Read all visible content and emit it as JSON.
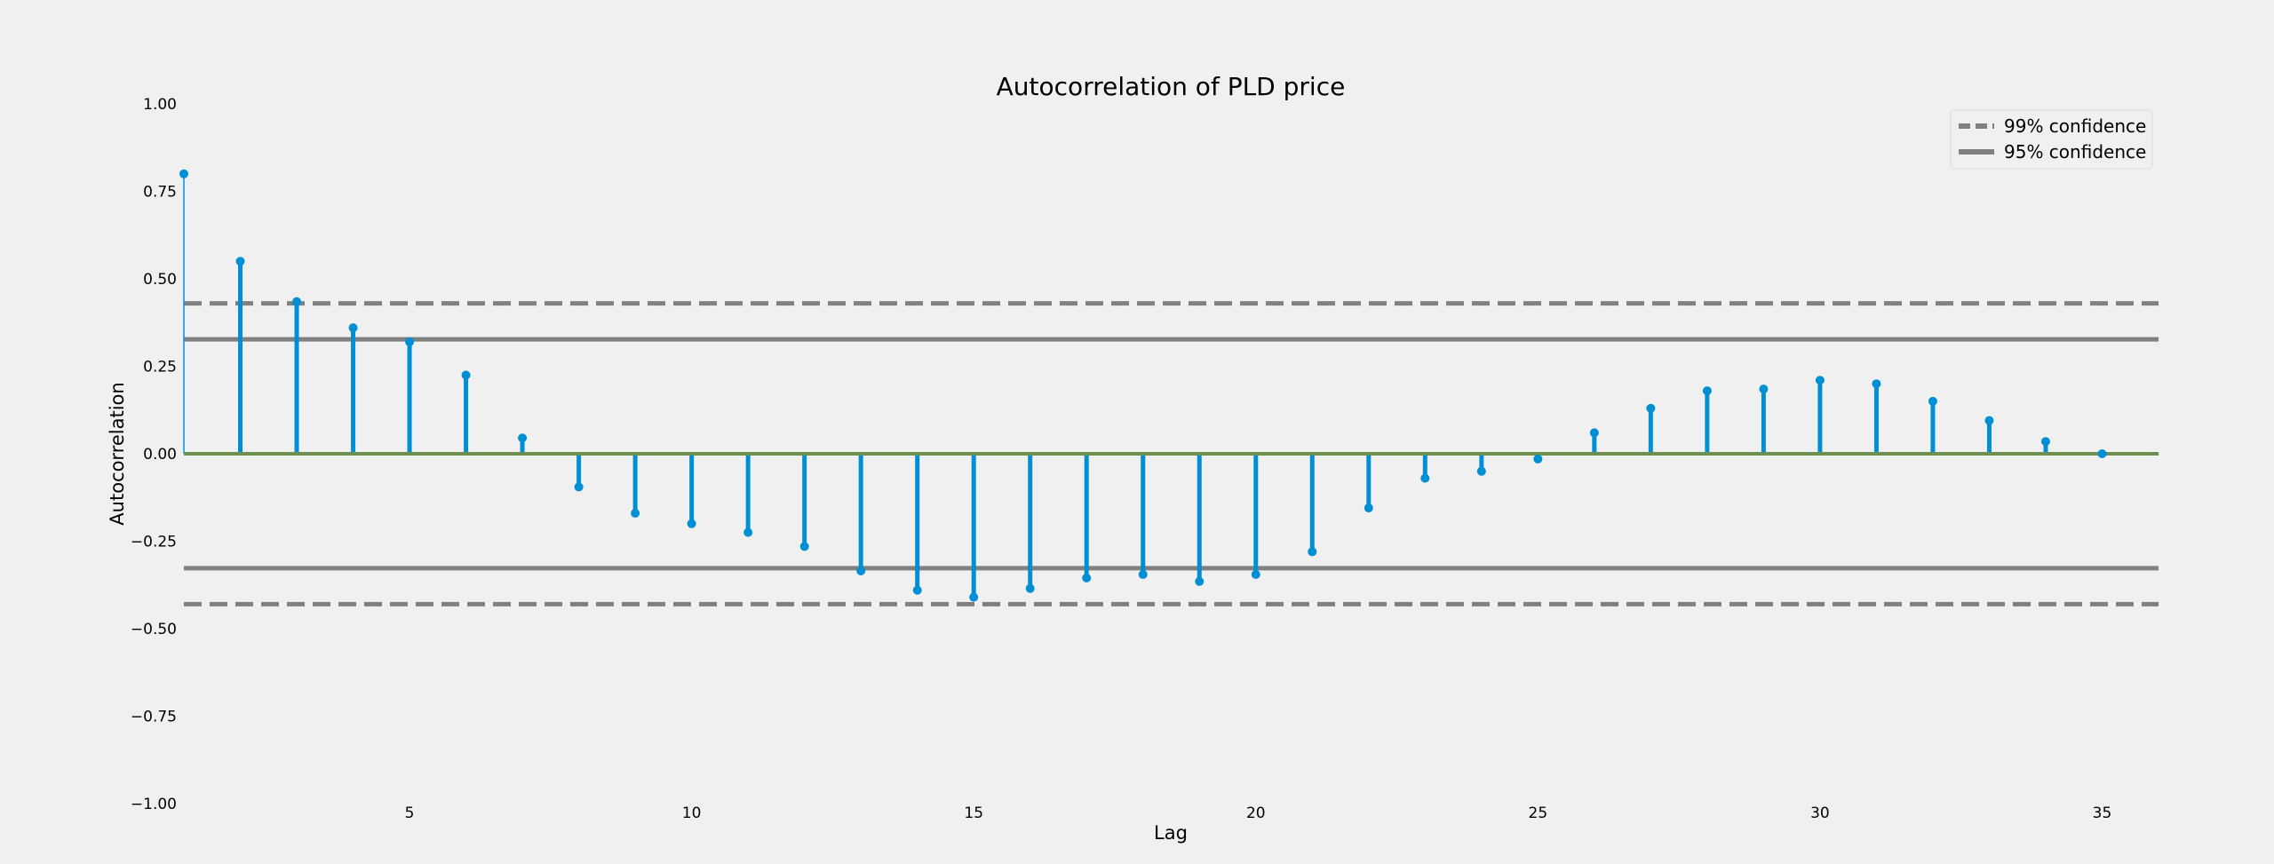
{
  "chart_data": {
    "type": "stem",
    "title": "Autocorrelation of PLD price",
    "xlabel": "Lag",
    "ylabel": "Autocorrelation",
    "xlim": [
      1,
      36
    ],
    "ylim": [
      -1.0,
      1.0
    ],
    "x_ticks": [
      5,
      10,
      15,
      20,
      25,
      30,
      35
    ],
    "y_ticks": [
      1.0,
      0.75,
      0.5,
      0.25,
      0.0,
      -0.25,
      -0.5,
      -0.75,
      -1.0
    ],
    "y_tick_labels": [
      "1.00",
      "0.75",
      "0.50",
      "0.25",
      "0.00",
      "−0.25",
      "−0.50",
      "−0.75",
      "−1.00"
    ],
    "grid": false,
    "legend_position": "top-right",
    "series": [
      {
        "name": "",
        "color": "#008fd5",
        "x": [
          1,
          2,
          3,
          4,
          5,
          6,
          7,
          8,
          9,
          10,
          11,
          12,
          13,
          14,
          15,
          16,
          17,
          18,
          19,
          20,
          21,
          22,
          23,
          24,
          25,
          26,
          27,
          28,
          29,
          30,
          31,
          32,
          33,
          34,
          35
        ],
        "values": [
          0.8,
          0.55,
          0.435,
          0.36,
          0.32,
          0.225,
          0.045,
          -0.095,
          -0.17,
          -0.2,
          -0.225,
          -0.265,
          -0.335,
          -0.39,
          -0.41,
          -0.385,
          -0.355,
          -0.345,
          -0.365,
          -0.345,
          -0.28,
          -0.155,
          -0.07,
          -0.05,
          -0.015,
          0.06,
          0.13,
          0.18,
          0.185,
          0.21,
          0.2,
          0.15,
          0.095,
          0.035,
          0.0
        ]
      }
    ],
    "reference_lines": [
      {
        "name": "99% confidence",
        "style": "dashed",
        "color": "#808080",
        "values": [
          0.43,
          -0.43
        ]
      },
      {
        "name": "95% confidence",
        "style": "solid",
        "color": "#808080",
        "values": [
          0.327,
          -0.327
        ]
      }
    ],
    "zero_line_color": "#6d904f"
  }
}
